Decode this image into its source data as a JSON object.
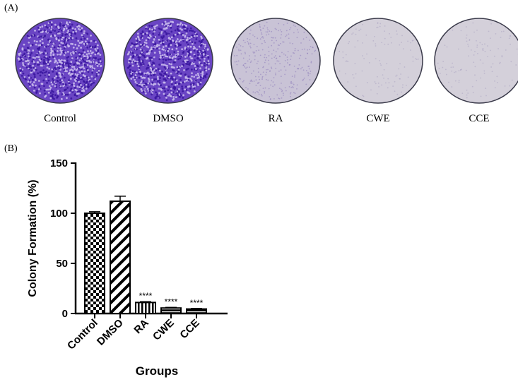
{
  "panel_a_label": "(A)",
  "panel_b_label": "(B)",
  "dishes": [
    {
      "caption": "Control",
      "density": 0.95,
      "color": "#5a2fb8"
    },
    {
      "caption": "DMSO",
      "density": 0.95,
      "color": "#5a2fb8"
    },
    {
      "caption": "RA",
      "density": 0.35,
      "color": "#8a78b8"
    },
    {
      "caption": "CWE",
      "density": 0.12,
      "color": "#a89fc0"
    },
    {
      "caption": "CCE",
      "density": 0.12,
      "color": "#a89fc0"
    }
  ],
  "chart_data": {
    "type": "bar",
    "categories": [
      "Control",
      "DMSO",
      "RA",
      "CWE",
      "CCE"
    ],
    "values": [
      100,
      112,
      11,
      5.5,
      4.5
    ],
    "errors": [
      1.5,
      5,
      0.8,
      0.6,
      0.6
    ],
    "significance": [
      "",
      "",
      "****",
      "****",
      "****"
    ],
    "patterns": [
      "checker",
      "diagonal",
      "vertical",
      "horizontal",
      "horizontal"
    ],
    "xlabel": "Groups",
    "ylabel": "Colony Formation (%)",
    "ylim": [
      0,
      150
    ],
    "yticks": [
      0,
      50,
      100,
      150
    ],
    "grid": false
  }
}
